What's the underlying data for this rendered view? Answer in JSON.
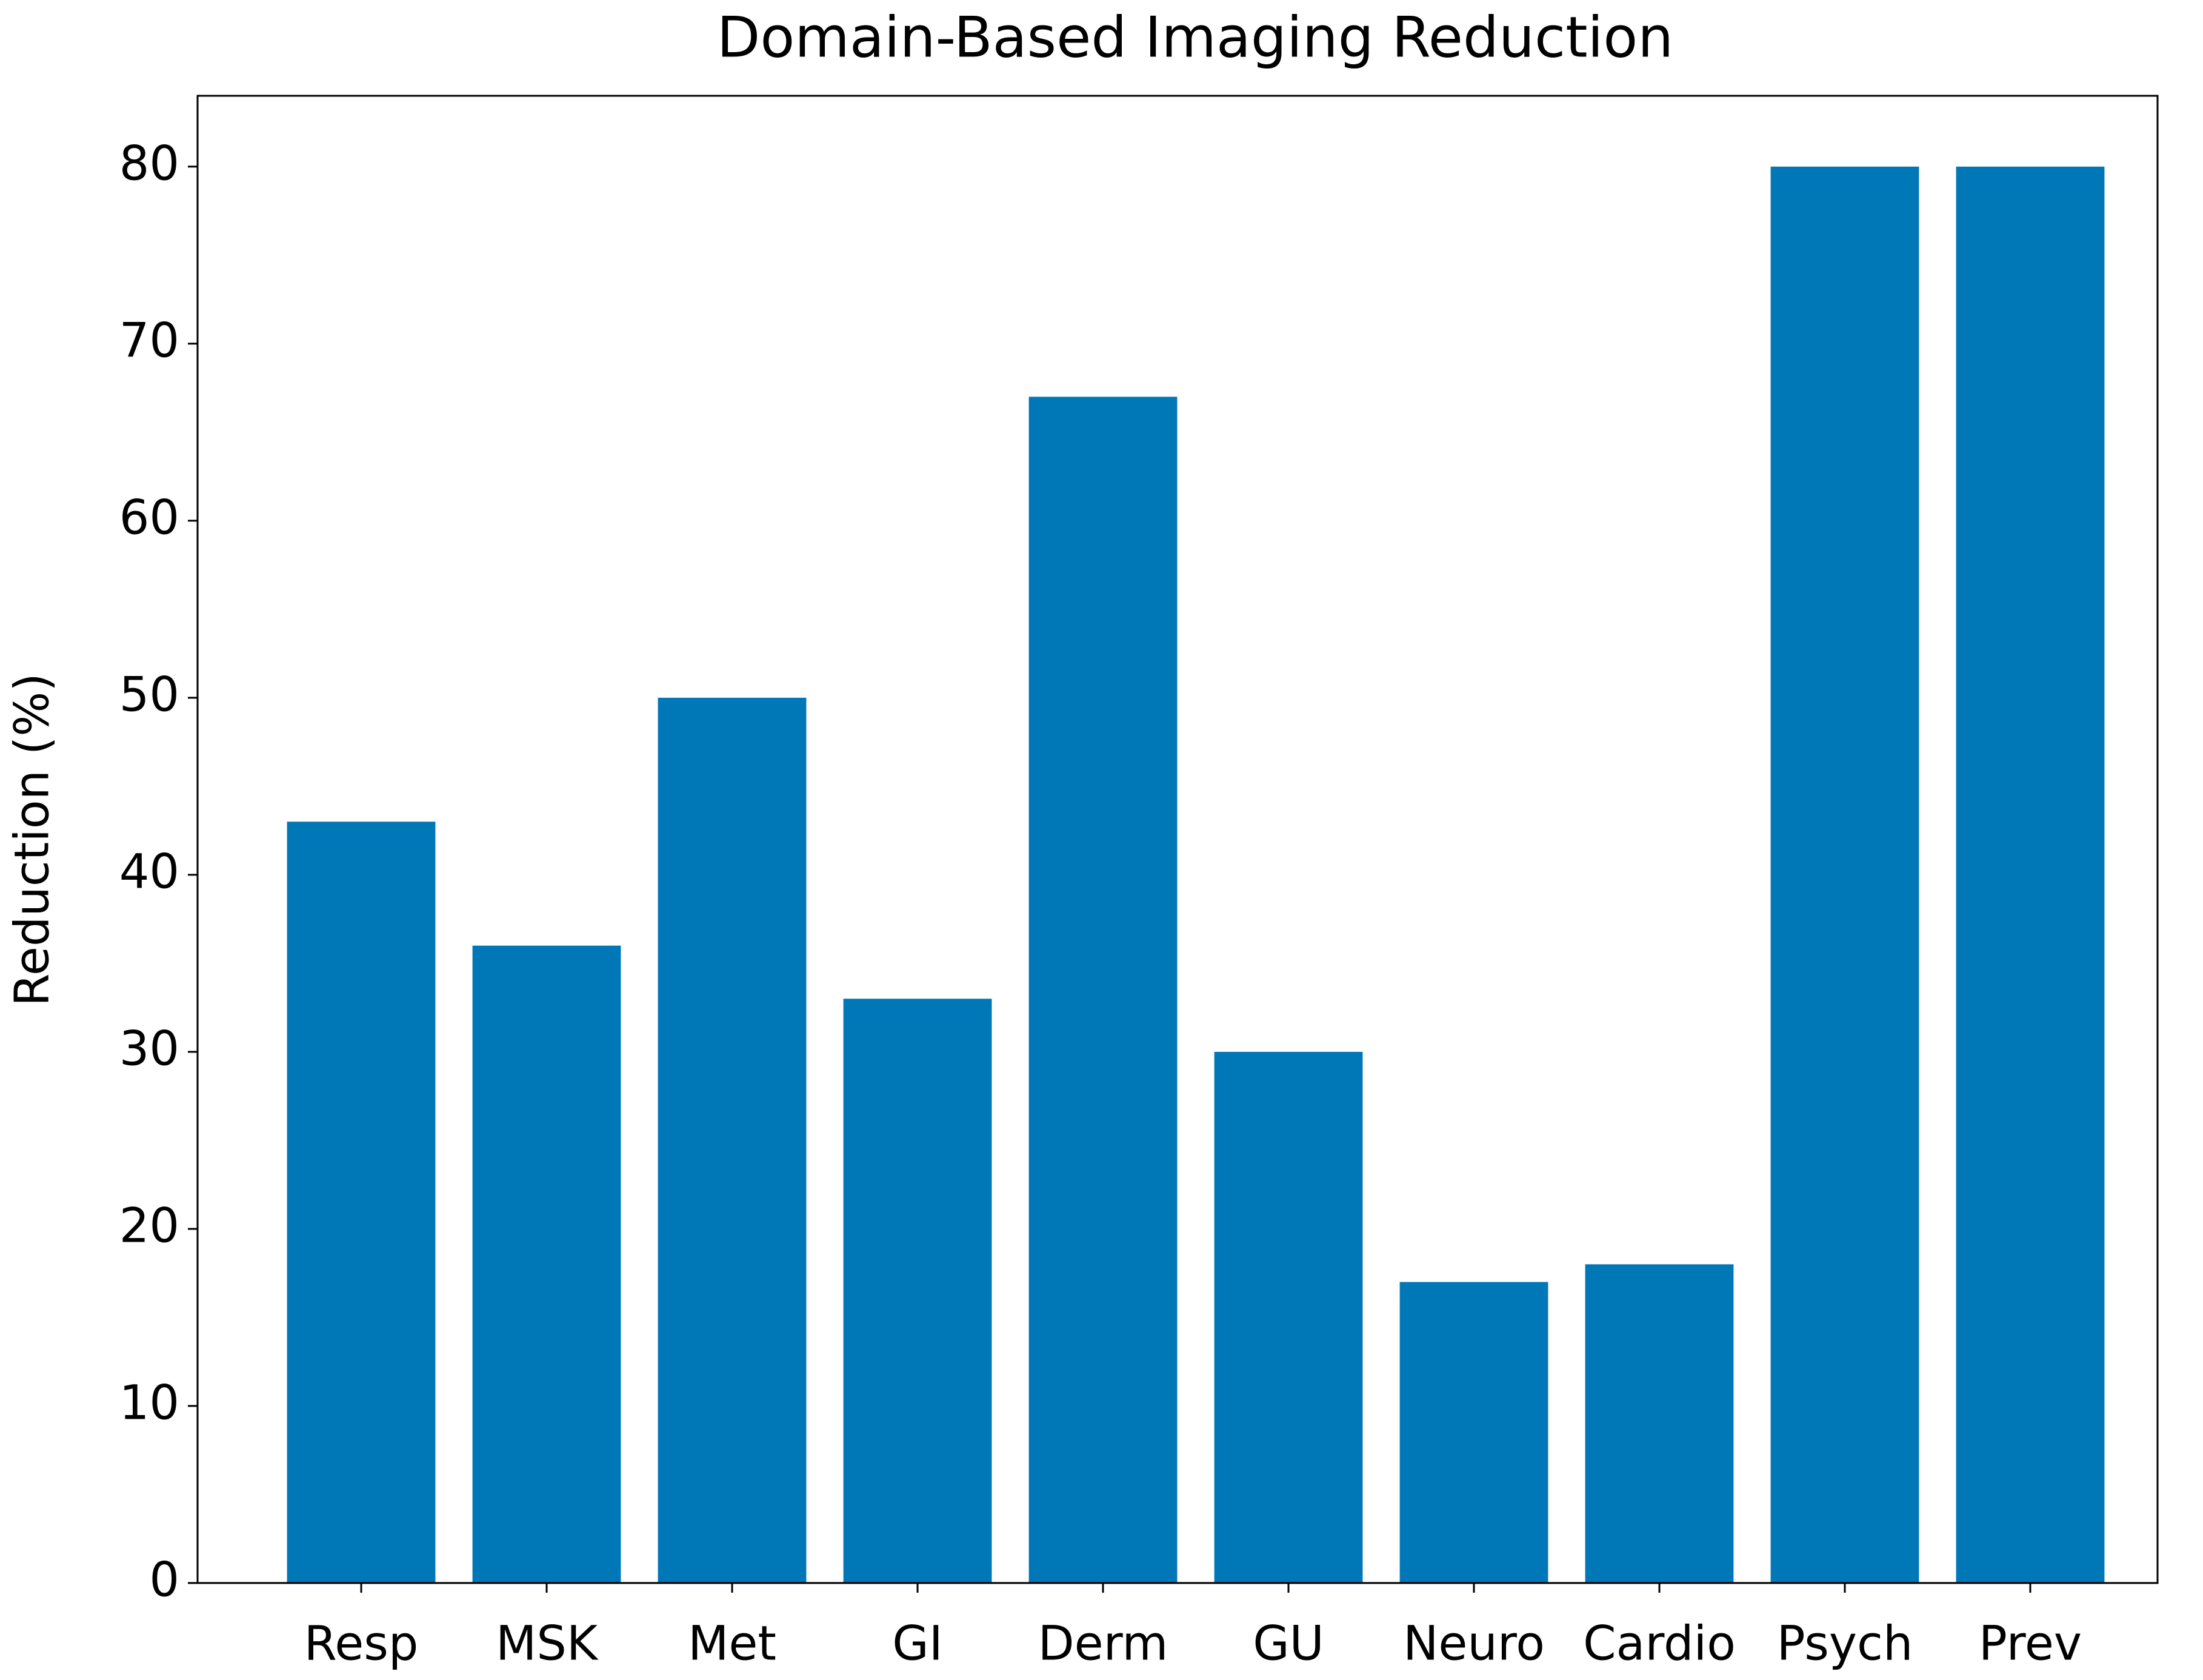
{
  "chart_data": {
    "type": "bar",
    "title": "Domain-Based Imaging Reduction",
    "y_label": "Reduction (%)",
    "categories": [
      "Resp",
      "MSK",
      "Met",
      "GI",
      "Derm",
      "GU",
      "Neuro",
      "Cardio",
      "Psych",
      "Prev"
    ],
    "values": [
      43,
      36,
      50,
      33,
      67,
      30,
      17,
      18,
      80,
      80
    ],
    "color": "#0077b7",
    "ylim": [
      0,
      84
    ],
    "yticks": [
      0,
      10,
      20,
      30,
      40,
      50,
      60,
      70,
      80
    ],
    "grid": false
  }
}
